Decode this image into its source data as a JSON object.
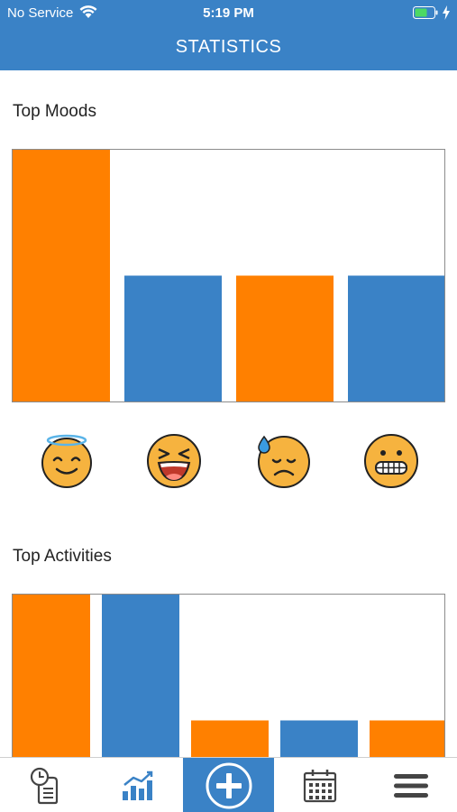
{
  "status_bar": {
    "carrier": "No Service",
    "time": "5:19 PM"
  },
  "header": {
    "title": "STATISTICS"
  },
  "colors": {
    "primary": "#3a82c6",
    "accent": "#ff8000",
    "emoji_face": "#f6b33f"
  },
  "top_moods": {
    "title": "Top Moods",
    "emojis": [
      "smiling-angel-emoji",
      "laughing-emoji",
      "sad-sweat-emoji",
      "grimacing-emoji"
    ]
  },
  "top_activities": {
    "title": "Top Activities"
  },
  "chart_data": [
    {
      "type": "bar",
      "title": "Top Moods",
      "categories": [
        "",
        "",
        "",
        ""
      ],
      "values": [
        2,
        1,
        1,
        1
      ],
      "ylim": [
        0,
        2
      ],
      "bar_colors": [
        "#ff8000",
        "#3a82c6",
        "#ff8000",
        "#3a82c6"
      ],
      "grid": false
    },
    {
      "type": "bar",
      "title": "Top Activities",
      "categories": [
        "",
        "",
        "",
        "",
        ""
      ],
      "values": [
        2,
        2,
        1,
        1,
        1
      ],
      "ylim": [
        0,
        2
      ],
      "bar_colors": [
        "#ff8000",
        "#3a82c6",
        "#ff8000",
        "#3a82c6",
        "#ff8000"
      ],
      "grid": false
    }
  ],
  "tabbar": {
    "items": [
      "timeline-icon",
      "stats-icon",
      "add-icon",
      "calendar-icon",
      "menu-icon"
    ]
  }
}
